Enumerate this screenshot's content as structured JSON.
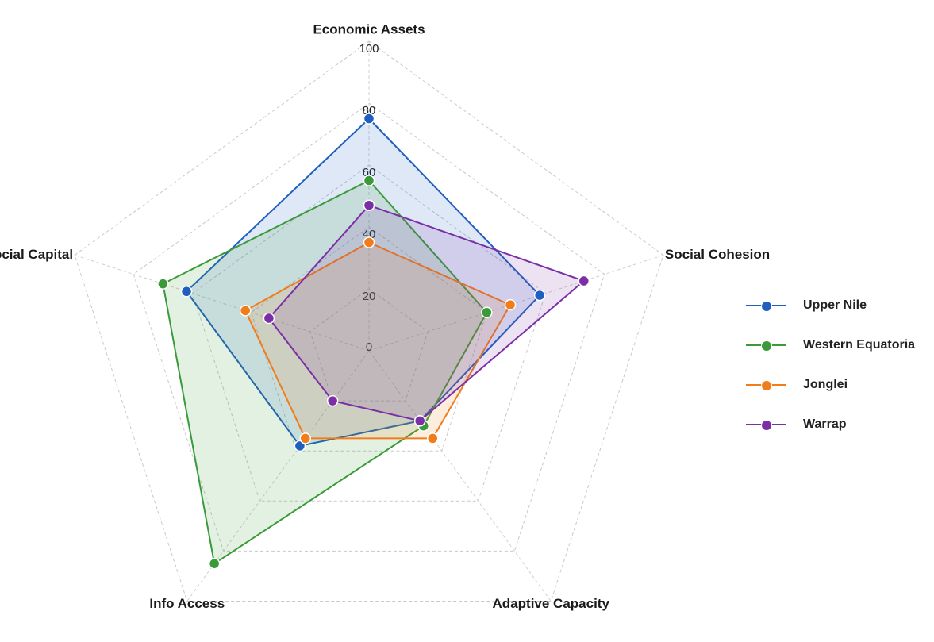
{
  "chart_data": {
    "type": "radar",
    "axes": [
      "Economic Assets",
      "Social Cohesion",
      "Adaptive Capacity",
      "Info Access",
      "Social Capital"
    ],
    "ticks": [
      0,
      20,
      40,
      60,
      80,
      100
    ],
    "rlim": [
      0,
      100
    ],
    "grid": true,
    "legend_position": "right",
    "series": [
      {
        "name": "Upper Nile",
        "color": "#1f5fbf",
        "values": [
          75,
          58,
          28,
          38,
          62
        ]
      },
      {
        "name": "Western Equatoria",
        "color": "#3a9a3a",
        "values": [
          55,
          40,
          30,
          85,
          70
        ]
      },
      {
        "name": "Jonglei",
        "color": "#f07d1a",
        "values": [
          35,
          48,
          35,
          35,
          42
        ]
      },
      {
        "name": "Warrap",
        "color": "#7b2fa6",
        "values": [
          47,
          73,
          28,
          20,
          34
        ]
      }
    ]
  }
}
